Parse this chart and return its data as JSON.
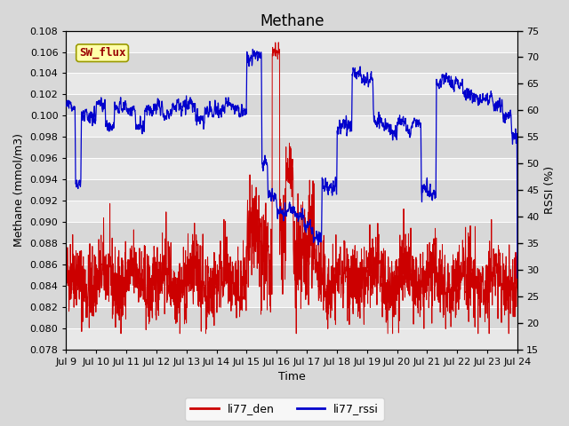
{
  "title": "Methane",
  "ylabel_left": "Methane (mmol/m3)",
  "ylabel_right": "RSSI (%)",
  "xlabel": "Time",
  "ylim_left": [
    0.078,
    0.108
  ],
  "ylim_right": [
    15,
    75
  ],
  "yticks_left": [
    0.078,
    0.08,
    0.082,
    0.084,
    0.086,
    0.088,
    0.09,
    0.092,
    0.094,
    0.096,
    0.098,
    0.1,
    0.102,
    0.104,
    0.106,
    0.108
  ],
  "yticks_right": [
    15,
    20,
    25,
    30,
    35,
    40,
    45,
    50,
    55,
    60,
    65,
    70,
    75
  ],
  "xtick_labels": [
    "Jul 9",
    "Jul 10",
    "Jul 11",
    "Jul 12",
    "Jul 13",
    "Jul 14",
    "Jul 15",
    "Jul 16",
    "Jul 17",
    "Jul 18",
    "Jul 19",
    "Jul 20",
    "Jul 21",
    "Jul 22",
    "Jul 23",
    "Jul 24"
  ],
  "xtick_positions": [
    0,
    1,
    2,
    3,
    4,
    5,
    6,
    7,
    8,
    9,
    10,
    11,
    12,
    13,
    14,
    15
  ],
  "fig_bg_color": "#d8d8d8",
  "plot_bg_color": "#e8e8e8",
  "sw_flux_label": "SW_flux",
  "sw_flux_bg": "#ffffaa",
  "sw_flux_border": "#999900",
  "sw_flux_text_color": "#990000",
  "legend_labels": [
    "li77_den",
    "li77_rssi"
  ],
  "line_colors": [
    "#cc0000",
    "#0000cc"
  ],
  "grid_color": "#ffffff",
  "stripe_color_light": "#e8e8e8",
  "stripe_color_dark": "#d8d8d8",
  "title_fontsize": 12,
  "axis_fontsize": 9,
  "tick_fontsize": 8,
  "legend_fontsize": 9
}
